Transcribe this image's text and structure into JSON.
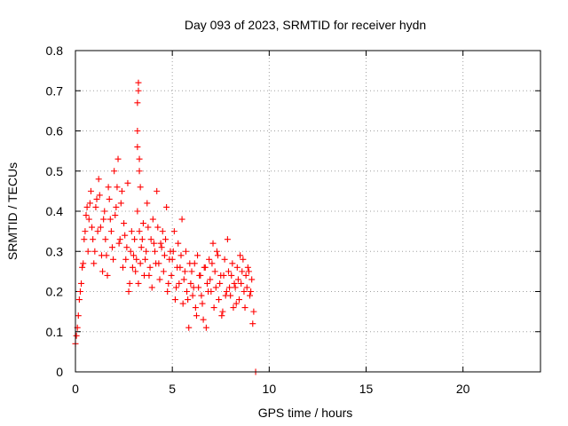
{
  "chart_data": {
    "type": "scatter",
    "title": "Day 093 of 2023, SRMTID for receiver hydn",
    "xlabel": "GPS time / hours",
    "ylabel": "SRMTID / TECUs",
    "xlim": [
      0,
      24
    ],
    "ylim": [
      0,
      0.8
    ],
    "xticks": [
      0,
      5,
      10,
      15,
      20
    ],
    "xtick_labels": [
      "0",
      "5",
      "10",
      "15",
      "20"
    ],
    "yticks": [
      0,
      0.1,
      0.2,
      0.3,
      0.4,
      0.5,
      0.6,
      0.7,
      0.8
    ],
    "ytick_labels": [
      "0",
      "0.1",
      "0.2",
      "0.3",
      "0.4",
      "0.5",
      "0.6",
      "0.7",
      "0.8"
    ],
    "grid": true,
    "marker": "plus",
    "color": "#ff0000",
    "series": [
      {
        "name": "SRMTID",
        "x": [
          0.0,
          0.1,
          0.2,
          0.3,
          0.4,
          0.5,
          0.6,
          0.7,
          0.8,
          0.9,
          1.0,
          1.1,
          1.2,
          1.3,
          1.4,
          1.5,
          1.6,
          1.7,
          1.8,
          1.9,
          2.0,
          2.1,
          2.2,
          2.3,
          2.4,
          2.5,
          2.6,
          2.7,
          2.8,
          2.9,
          3.0,
          3.1,
          3.2,
          3.3,
          3.4,
          3.5,
          3.6,
          3.7,
          3.8,
          3.9,
          4.0,
          4.1,
          4.2,
          4.3,
          4.4,
          4.5,
          4.6,
          4.7,
          4.8,
          4.9,
          5.0,
          5.1,
          5.2,
          5.3,
          5.4,
          5.5,
          5.6,
          5.7,
          5.8,
          5.9,
          6.0,
          6.1,
          6.2,
          6.3,
          6.4,
          6.5,
          6.6,
          6.7,
          6.8,
          6.9,
          7.0,
          7.1,
          7.2,
          7.3,
          7.4,
          7.5,
          7.6,
          7.7,
          7.8,
          7.9,
          8.0,
          8.1,
          8.2,
          8.3,
          8.4,
          8.5,
          8.6,
          8.7,
          8.8,
          8.9,
          9.0,
          9.1,
          9.2,
          9.3,
          0.05,
          0.15,
          0.25,
          0.35,
          0.45,
          0.55,
          0.65,
          0.75,
          0.85,
          0.95,
          1.05,
          1.15,
          1.25,
          1.35,
          1.45,
          1.55,
          1.65,
          1.75,
          1.85,
          1.95,
          2.05,
          2.15,
          2.25,
          2.35,
          2.45,
          2.55,
          2.65,
          2.75,
          2.85,
          2.95,
          3.05,
          3.15,
          3.25,
          3.35,
          3.45,
          3.55,
          3.65,
          3.75,
          3.85,
          3.95,
          4.05,
          4.15,
          4.25,
          4.35,
          4.45,
          4.55,
          4.65,
          4.75,
          4.85,
          4.95,
          5.05,
          5.15,
          5.25,
          5.35,
          5.45,
          5.55,
          5.65,
          5.75,
          5.85,
          5.95,
          6.05,
          6.15,
          6.25,
          6.35,
          6.45,
          6.55,
          6.65,
          6.75,
          6.85,
          6.95,
          7.05,
          7.15,
          7.25,
          7.35,
          7.45,
          7.55,
          7.65,
          7.75,
          7.85,
          7.95,
          8.05,
          8.15,
          8.25,
          8.35,
          8.45,
          8.55,
          8.65,
          8.75,
          8.85,
          8.95,
          9.05,
          9.15,
          3.2,
          3.2,
          3.2,
          3.25,
          3.25,
          3.3,
          3.3,
          3.35
        ],
        "y": [
          0.07,
          0.11,
          0.18,
          0.22,
          0.27,
          0.35,
          0.41,
          0.38,
          0.45,
          0.33,
          0.3,
          0.43,
          0.48,
          0.36,
          0.25,
          0.4,
          0.29,
          0.46,
          0.38,
          0.31,
          0.5,
          0.41,
          0.53,
          0.33,
          0.45,
          0.37,
          0.28,
          0.47,
          0.22,
          0.35,
          0.29,
          0.25,
          0.4,
          0.35,
          0.31,
          0.37,
          0.28,
          0.42,
          0.24,
          0.33,
          0.38,
          0.3,
          0.45,
          0.27,
          0.32,
          0.35,
          0.29,
          0.41,
          0.22,
          0.3,
          0.28,
          0.35,
          0.21,
          0.32,
          0.26,
          0.38,
          0.23,
          0.3,
          0.18,
          0.27,
          0.25,
          0.21,
          0.16,
          0.29,
          0.24,
          0.19,
          0.13,
          0.26,
          0.22,
          0.28,
          0.2,
          0.32,
          0.25,
          0.3,
          0.18,
          0.24,
          0.15,
          0.28,
          0.2,
          0.25,
          0.19,
          0.27,
          0.22,
          0.17,
          0.23,
          0.29,
          0.25,
          0.2,
          0.24,
          0.26,
          0.19,
          0.23,
          0.15,
          0.0,
          0.09,
          0.14,
          0.2,
          0.26,
          0.33,
          0.39,
          0.3,
          0.42,
          0.36,
          0.27,
          0.41,
          0.35,
          0.44,
          0.29,
          0.38,
          0.33,
          0.24,
          0.43,
          0.35,
          0.28,
          0.39,
          0.46,
          0.32,
          0.42,
          0.26,
          0.34,
          0.31,
          0.2,
          0.3,
          0.26,
          0.33,
          0.28,
          0.22,
          0.27,
          0.33,
          0.24,
          0.3,
          0.36,
          0.26,
          0.21,
          0.32,
          0.27,
          0.36,
          0.23,
          0.31,
          0.25,
          0.33,
          0.2,
          0.28,
          0.24,
          0.3,
          0.18,
          0.26,
          0.22,
          0.29,
          0.17,
          0.25,
          0.2,
          0.11,
          0.22,
          0.19,
          0.27,
          0.14,
          0.21,
          0.24,
          0.17,
          0.26,
          0.11,
          0.2,
          0.23,
          0.27,
          0.16,
          0.21,
          0.29,
          0.22,
          0.14,
          0.24,
          0.19,
          0.33,
          0.21,
          0.24,
          0.16,
          0.21,
          0.26,
          0.18,
          0.22,
          0.28,
          0.16,
          0.21,
          0.25,
          0.2,
          0.12,
          0.56,
          0.6,
          0.67,
          0.7,
          0.72,
          0.53,
          0.5,
          0.46
        ]
      }
    ]
  }
}
